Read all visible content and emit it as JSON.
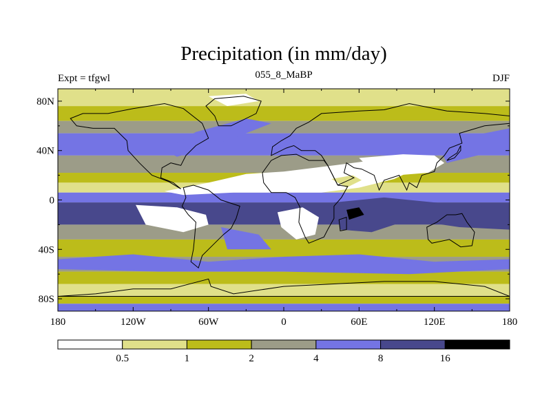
{
  "chart_data": {
    "type": "heatmap",
    "title": "Precipitation (in mm/day)",
    "subtitle_left": "Expt = tfgwl",
    "subtitle_center": "055_8_MaBP",
    "subtitle_right": "DJF",
    "x_ticks": [
      "180",
      "120W",
      "60W",
      "0",
      "60E",
      "120E",
      "180"
    ],
    "x_tick_values": [
      -180,
      -120,
      -60,
      0,
      60,
      120,
      180
    ],
    "y_ticks": [
      "80N",
      "40N",
      "0",
      "40S",
      "80S"
    ],
    "y_tick_values": [
      80,
      40,
      0,
      -40,
      -80
    ],
    "xlim": [
      -180,
      180
    ],
    "ylim": [
      -90,
      90
    ],
    "levels": [
      "0.5",
      "1",
      "2",
      "4",
      "8",
      "16"
    ],
    "level_values": [
      0.5,
      1,
      2,
      4,
      8,
      16
    ],
    "level_colors": [
      "#ffffff",
      "#e0e08a",
      "#bcbc1a",
      "#9c9c88",
      "#7474e4",
      "#48488c",
      "#000000"
    ],
    "zonal_bands": [
      {
        "lat": [
          76,
          90
        ],
        "class": 1
      },
      {
        "lat": [
          64,
          76
        ],
        "class": 2
      },
      {
        "lat": [
          54,
          64
        ],
        "class": 3
      },
      {
        "lat": [
          36,
          54
        ],
        "class": 4
      },
      {
        "lat": [
          22,
          36
        ],
        "class": 3
      },
      {
        "lat": [
          14,
          22
        ],
        "class": 2
      },
      {
        "lat": [
          6,
          14
        ],
        "class": 1
      },
      {
        "lat": [
          -2,
          6
        ],
        "class": 4
      },
      {
        "lat": [
          -20,
          -2
        ],
        "class": 5
      },
      {
        "lat": [
          -32,
          -20
        ],
        "class": 3
      },
      {
        "lat": [
          -46,
          -32
        ],
        "class": 2
      },
      {
        "lat": [
          -58,
          -46
        ],
        "class": 3
      },
      {
        "lat": [
          -68,
          -58
        ],
        "class": 2
      },
      {
        "lat": [
          -78,
          -68
        ],
        "class": 1
      },
      {
        "lat": [
          -84,
          -78
        ],
        "class": 2
      },
      {
        "lat": [
          -90,
          -84
        ],
        "class": 4
      }
    ],
    "regions": [
      {
        "name": "north-atlantic-storm-track",
        "class": 4,
        "points": [
          [
            -85,
            35
          ],
          [
            -40,
            50
          ],
          [
            -10,
            62
          ],
          [
            -30,
            66
          ],
          [
            -70,
            55
          ],
          [
            -95,
            40
          ]
        ]
      },
      {
        "name": "north-pacific-storm-track",
        "class": 4,
        "points": [
          [
            130,
            30
          ],
          [
            170,
            40
          ],
          [
            180,
            48
          ],
          [
            180,
            58
          ],
          [
            150,
            52
          ],
          [
            125,
            40
          ]
        ]
      },
      {
        "name": "subtropical-dry-belt",
        "class": 0,
        "points": [
          [
            -95,
            7
          ],
          [
            -60,
            14
          ],
          [
            -30,
            21
          ],
          [
            0,
            23
          ],
          [
            40,
            28
          ],
          [
            70,
            32
          ],
          [
            95,
            32
          ],
          [
            105,
            25
          ],
          [
            88,
            17
          ],
          [
            60,
            10
          ],
          [
            30,
            6
          ],
          [
            0,
            6
          ],
          [
            -40,
            6
          ],
          [
            -80,
            4
          ]
        ]
      },
      {
        "name": "east-asia-dry-zone",
        "class": 0,
        "points": [
          [
            60,
            34
          ],
          [
            95,
            37
          ],
          [
            120,
            36
          ],
          [
            128,
            30
          ],
          [
            115,
            22
          ],
          [
            90,
            20
          ],
          [
            70,
            24
          ]
        ]
      },
      {
        "name": "south-american-dry-zone",
        "class": 0,
        "points": [
          [
            -118,
            -4
          ],
          [
            -85,
            -6
          ],
          [
            -62,
            -12
          ],
          [
            -60,
            -20
          ],
          [
            -80,
            -26
          ],
          [
            -110,
            -20
          ]
        ]
      },
      {
        "name": "african-dry-zone",
        "class": 0,
        "points": [
          [
            -5,
            -10
          ],
          [
            15,
            -6
          ],
          [
            28,
            -14
          ],
          [
            25,
            -28
          ],
          [
            10,
            -32
          ],
          [
            -2,
            -22
          ]
        ]
      },
      {
        "name": "arabian-dry-zone",
        "class": 1,
        "points": [
          [
            38,
            17
          ],
          [
            55,
            20
          ],
          [
            62,
            16
          ],
          [
            50,
            10
          ]
        ]
      },
      {
        "name": "west-pacific-warm-pool",
        "class": 5,
        "points": [
          [
            40,
            -2
          ],
          [
            80,
            2
          ],
          [
            120,
            -2
          ],
          [
            170,
            -6
          ],
          [
            180,
            -10
          ],
          [
            180,
            -24
          ],
          [
            140,
            -22
          ],
          [
            100,
            -16
          ],
          [
            70,
            -26
          ],
          [
            45,
            -24
          ]
        ]
      },
      {
        "name": "indian-ocean-max",
        "class": 6,
        "points": [
          [
            50,
            -8
          ],
          [
            60,
            -6
          ],
          [
            64,
            -12
          ],
          [
            52,
            -16
          ]
        ]
      },
      {
        "name": "south-atlantic-convergence",
        "class": 4,
        "points": [
          [
            -50,
            -22
          ],
          [
            -20,
            -28
          ],
          [
            -10,
            -40
          ],
          [
            -45,
            -40
          ]
        ]
      },
      {
        "name": "southern-ocean-storm-track",
        "class": 4,
        "points": [
          [
            -180,
            -48
          ],
          [
            -120,
            -44
          ],
          [
            -60,
            -50
          ],
          [
            0,
            -46
          ],
          [
            60,
            -44
          ],
          [
            120,
            -50
          ],
          [
            180,
            -48
          ],
          [
            180,
            -56
          ],
          [
            100,
            -60
          ],
          [
            0,
            -58
          ],
          [
            -100,
            -58
          ],
          [
            -180,
            -56
          ]
        ]
      },
      {
        "name": "arctic-dry-cap",
        "class": 0,
        "points": [
          [
            -60,
            84
          ],
          [
            -30,
            86
          ],
          [
            -20,
            80
          ],
          [
            -45,
            76
          ]
        ]
      }
    ]
  }
}
